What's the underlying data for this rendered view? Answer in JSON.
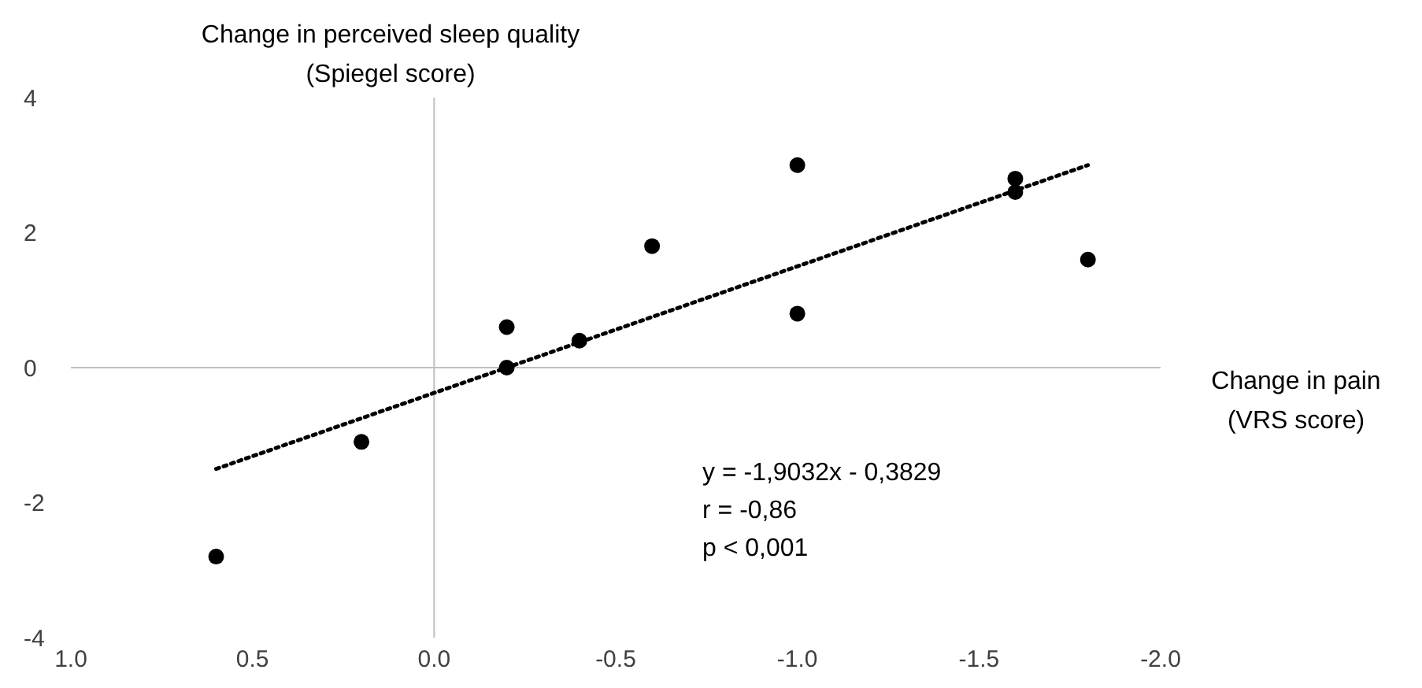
{
  "chart_data": {
    "type": "scatter",
    "xlabel": "Change in pain\n(VRS score)",
    "ylabel": "Change in perceived sleep quality\n(Spiegel score)",
    "annotations": [
      "y = -1,9032x - 0,3829",
      "r = -0,86",
      "p < 0,001"
    ],
    "series": [
      {
        "color": "#000000",
        "marker": "circle",
        "x": [
          0.6,
          0.2,
          -0.2,
          -0.2,
          -0.4,
          -0.6,
          -1.0,
          -1.0,
          -1.6,
          -1.6,
          -1.8
        ],
        "values": [
          -2.8,
          -1.1,
          0.6,
          0.0,
          0.4,
          1.8,
          3.0,
          0.8,
          2.8,
          2.6,
          1.6
        ]
      },
      {
        "type": "line",
        "color": "#000000",
        "line_style": "dotted",
        "marker": "none",
        "x": [
          0.6,
          -1.8
        ],
        "values": [
          -1.5,
          3.0
        ]
      }
    ],
    "xlim": [
      1.0,
      -2.0
    ],
    "xticks": [
      {
        "value": 1.0,
        "label": "1.0"
      },
      0.5,
      {
        "value": 0,
        "label": "0.0"
      },
      -0.5,
      {
        "value": -1.0,
        "label": "-1.0"
      },
      -1.5,
      {
        "value": -2.0,
        "label": "-2.0"
      }
    ],
    "ylim": [
      -4,
      4
    ],
    "yticks": [
      -4,
      -2,
      0,
      2,
      4
    ]
  }
}
